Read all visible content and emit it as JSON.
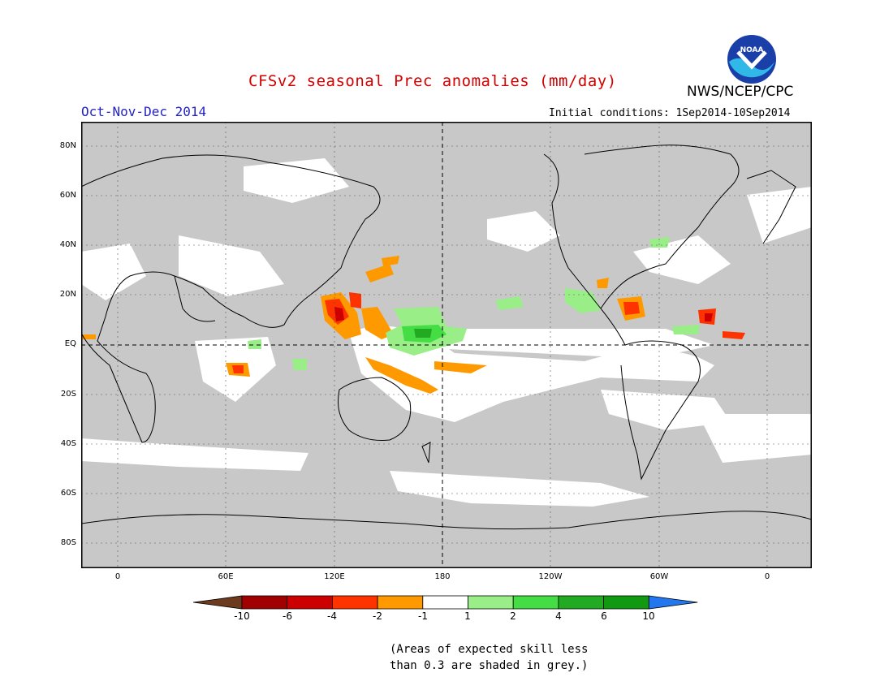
{
  "title": "CFSv2 seasonal Prec anomalies (mm/day)",
  "season": "Oct-Nov-Dec 2014",
  "initial_conditions": "Initial conditions: 1Sep2014-10Sep2014",
  "agency": "NWS/NCEP/CPC",
  "logo_text": "NOAA",
  "lat_labels": [
    "80N",
    "60N",
    "40N",
    "20N",
    "EQ",
    "20S",
    "40S",
    "60S",
    "80S"
  ],
  "lon_labels": [
    "0",
    "60E",
    "120E",
    "180",
    "120W",
    "60W",
    "0"
  ],
  "colorbar": {
    "labels": [
      "-10",
      "-6",
      "-4",
      "-2",
      "-1",
      "1",
      "2",
      "4",
      "6",
      "10"
    ],
    "colors": [
      "#6b3a1f",
      "#a00000",
      "#cc0000",
      "#ff3300",
      "#ff9900",
      "#ffffff",
      "#99ee88",
      "#44dd44",
      "#22aa22",
      "#119911",
      "#2277ee"
    ]
  },
  "note_line1": "(Areas of expected skill less",
  "note_line2": "than 0.3 are shaded in grey.)",
  "colors": {
    "mask_grey": "#c8c8c8",
    "title_red": "#d40000",
    "season_blue": "#2222cc"
  }
}
